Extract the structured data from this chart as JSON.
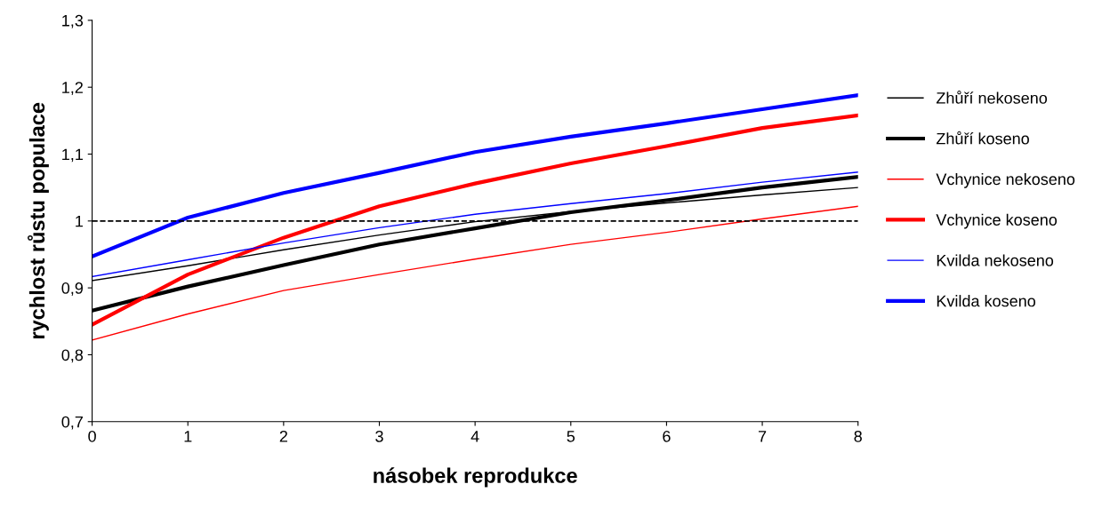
{
  "chart_data": {
    "type": "line",
    "xlabel": "násobek reprodukce",
    "ylabel": "rychlost růstu populace",
    "x": [
      0,
      1,
      2,
      3,
      4,
      5,
      6,
      7,
      8
    ],
    "series": [
      {
        "name": "Zhůří nekoseno",
        "color": "#000000",
        "values": [
          0.911,
          0.933,
          0.957,
          0.979,
          0.999,
          1.014,
          1.027,
          1.039,
          1.05
        ]
      },
      {
        "name": "Zhůří koseno",
        "color": "#000000",
        "values": [
          0.866,
          0.902,
          0.934,
          0.965,
          0.989,
          1.013,
          1.031,
          1.05,
          1.066
        ]
      },
      {
        "name": "Vchynice nekoseno",
        "color": "#ff0000",
        "values": [
          0.822,
          0.861,
          0.896,
          0.92,
          0.943,
          0.965,
          0.983,
          1.003,
          1.022
        ]
      },
      {
        "name": "Vchynice koseno",
        "color": "#ff0000",
        "values": [
          0.845,
          0.92,
          0.975,
          1.022,
          1.056,
          1.086,
          1.112,
          1.139,
          1.158
        ]
      },
      {
        "name": "Kvilda nekoseno",
        "color": "#0000ff",
        "values": [
          0.917,
          0.942,
          0.967,
          0.99,
          1.01,
          1.026,
          1.041,
          1.058,
          1.073
        ]
      },
      {
        "name": "Kvilda koseno",
        "color": "#0000ff",
        "values": [
          0.947,
          1.005,
          1.042,
          1.072,
          1.103,
          1.126,
          1.146,
          1.167,
          1.188
        ]
      }
    ],
    "xlim": [
      0,
      8
    ],
    "xticks": [
      0,
      1,
      2,
      3,
      4,
      5,
      6,
      7,
      8
    ],
    "ylim": [
      0.7,
      1.3
    ],
    "yticks": [
      {
        "value": 0.7,
        "label": "0,7"
      },
      {
        "value": 0.8,
        "label": "0,8"
      },
      {
        "value": 0.9,
        "label": "0,9"
      },
      {
        "value": 1,
        "label": "1"
      },
      {
        "value": 1.1,
        "label": "1,1"
      },
      {
        "value": 1.2,
        "label": "1,2"
      },
      {
        "value": 1.3,
        "label": "1,3"
      }
    ],
    "ref_lines": [
      {
        "axis": "y",
        "value": 1,
        "color": "#000000",
        "line_style": "dashed"
      }
    ],
    "grid": false,
    "legend": "right",
    "marker": "none",
    "line_style": "solid"
  }
}
